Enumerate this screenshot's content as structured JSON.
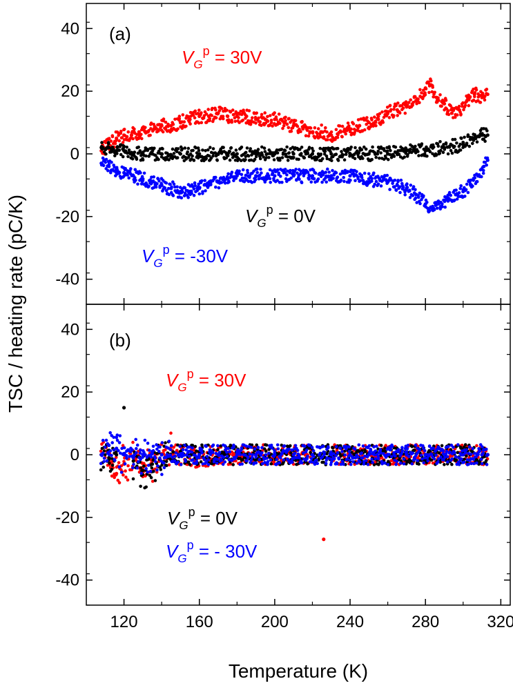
{
  "figure": {
    "ylabel": "TSC / heating rate (pC/K)",
    "xlabel": "Temperature (K)",
    "colors": {
      "red": "#ff0000",
      "black": "#000000",
      "blue": "#0000ff"
    }
  },
  "chart_data": [
    {
      "type": "scatter",
      "panel": "(a)",
      "xlim": [
        100,
        325
      ],
      "ylim": [
        -48,
        48
      ],
      "xticks": [
        120,
        160,
        200,
        240,
        280,
        320
      ],
      "yticks": [
        -40,
        -20,
        0,
        20,
        40
      ],
      "ytick_labels": [
        "-40",
        "-20",
        "0",
        "20",
        "40"
      ],
      "xlabel": "Temperature (K)",
      "ylabel": "TSC / heating rate (pC/K)",
      "series": [
        {
          "name": "VGp = 30V",
          "label": {
            "v": "V",
            "sub": "G",
            "sup": "p",
            "rest": " = 30V"
          },
          "color": "#ff0000",
          "x": [
            108,
            112,
            116,
            120,
            124,
            128,
            132,
            136,
            140,
            145,
            150,
            155,
            160,
            165,
            170,
            175,
            180,
            185,
            190,
            195,
            200,
            205,
            210,
            215,
            220,
            225,
            230,
            235,
            240,
            245,
            250,
            255,
            260,
            265,
            270,
            275,
            280,
            283,
            286,
            290,
            294,
            298,
            302,
            306,
            310,
            313
          ],
          "y": [
            1,
            3,
            5,
            6,
            6,
            7,
            7,
            8,
            9,
            9,
            10,
            11,
            12,
            12,
            13,
            12,
            12,
            12,
            11,
            11,
            11,
            10,
            9,
            8,
            7,
            7,
            6,
            7,
            8,
            9,
            10,
            11,
            13,
            14,
            15,
            17,
            21,
            22,
            18,
            16,
            13,
            14,
            17,
            19,
            18,
            19
          ]
        },
        {
          "name": "VGp = 0V",
          "label": {
            "v": "V",
            "sub": "G",
            "sup": "p",
            "rest": " = 0V"
          },
          "color": "#000000",
          "x": [
            108,
            112,
            116,
            120,
            125,
            130,
            135,
            140,
            150,
            160,
            170,
            180,
            190,
            200,
            210,
            220,
            230,
            240,
            250,
            260,
            270,
            280,
            290,
            300,
            306,
            310,
            313
          ],
          "y": [
            2,
            2,
            1,
            1,
            0,
            0,
            0,
            0,
            0,
            0,
            0,
            0,
            0,
            0,
            0,
            0,
            0,
            0,
            0,
            0,
            1,
            1,
            2,
            3,
            5,
            6,
            6
          ]
        },
        {
          "name": "VGp = -30V",
          "label": {
            "v": "V",
            "sub": "G",
            "sup": "p",
            "rest": " = -30V"
          },
          "color": "#0000ff",
          "x": [
            108,
            112,
            116,
            120,
            125,
            130,
            135,
            140,
            145,
            150,
            155,
            160,
            165,
            170,
            175,
            180,
            190,
            200,
            210,
            220,
            230,
            240,
            250,
            260,
            265,
            270,
            275,
            280,
            284,
            288,
            292,
            296,
            300,
            304,
            308,
            311,
            313
          ],
          "y": [
            -3,
            -4,
            -5,
            -6,
            -7,
            -8,
            -9,
            -10,
            -11,
            -12,
            -12,
            -11,
            -10,
            -9,
            -8,
            -7,
            -7,
            -7,
            -7,
            -7,
            -7,
            -7,
            -8,
            -9,
            -10,
            -11,
            -13,
            -16,
            -18,
            -17,
            -15,
            -13,
            -12,
            -10,
            -7,
            -4,
            -2
          ]
        }
      ]
    },
    {
      "type": "scatter",
      "panel": "(b)",
      "xlim": [
        100,
        325
      ],
      "ylim": [
        -48,
        48
      ],
      "xticks": [
        120,
        160,
        200,
        240,
        280,
        320
      ],
      "xtick_labels": [
        "120",
        "160",
        "200",
        "240",
        "280",
        "320"
      ],
      "yticks": [
        -40,
        -20,
        0,
        20,
        40
      ],
      "ytick_labels": [
        "-40",
        "-20",
        "0",
        "20",
        "40"
      ],
      "xlabel": "Temperature (K)",
      "ylabel": "TSC / heating rate (pC/K)",
      "series": [
        {
          "name": "VGp = 30V",
          "label": {
            "v": "V",
            "sub": "G",
            "sup": "p",
            "rest": " = 30V"
          },
          "color": "#ff0000",
          "x": [
            108,
            112,
            116,
            120,
            125,
            130,
            135,
            140,
            150,
            160,
            170,
            180,
            190,
            200,
            210,
            220,
            226,
            230,
            240,
            250,
            260,
            270,
            280,
            290,
            300,
            310,
            313
          ],
          "y": [
            0,
            -2,
            -6,
            -3,
            -1,
            -4,
            -2,
            0,
            0,
            -1,
            0,
            0,
            0,
            0,
            0,
            0,
            -27,
            0,
            0,
            0,
            0,
            0,
            0,
            0,
            0,
            0,
            0
          ]
        },
        {
          "name": "VGp = 0V",
          "label": {
            "v": "V",
            "sub": "G",
            "sup": "p",
            "rest": " = 0V"
          },
          "color": "#000000",
          "x": [
            108,
            112,
            116,
            120,
            125,
            130,
            135,
            140,
            150,
            160,
            170,
            180,
            190,
            200,
            210,
            220,
            230,
            240,
            250,
            260,
            270,
            280,
            290,
            300,
            310,
            313
          ],
          "y": [
            0,
            -1,
            0,
            15,
            -2,
            -5,
            -3,
            0,
            0,
            0,
            0,
            0,
            0,
            0,
            0,
            0,
            0,
            0,
            0,
            0,
            0,
            0,
            0,
            0,
            0,
            0
          ]
        },
        {
          "name": "VGp = - 30V",
          "label": {
            "v": "V",
            "sub": "G",
            "sup": "p",
            "rest": " = - 30V"
          },
          "color": "#0000ff",
          "x": [
            108,
            112,
            116,
            120,
            125,
            130,
            135,
            140,
            150,
            160,
            170,
            180,
            190,
            200,
            210,
            220,
            230,
            240,
            250,
            260,
            270,
            280,
            290,
            300,
            310,
            313
          ],
          "y": [
            0,
            3,
            2,
            0,
            -1,
            0,
            1,
            0,
            0,
            0,
            0,
            0,
            0,
            0,
            0,
            0,
            0,
            0,
            0,
            0,
            0,
            0,
            0,
            0,
            0,
            0
          ]
        }
      ]
    }
  ]
}
